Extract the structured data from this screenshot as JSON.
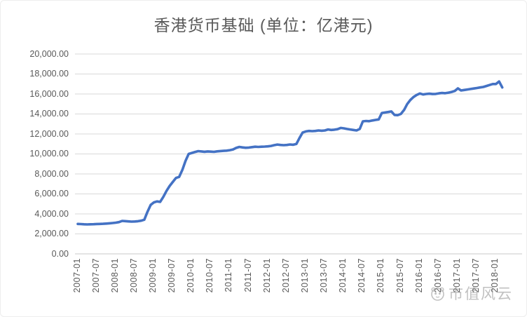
{
  "chart_data": {
    "type": "line",
    "title": "香港货币基础 (单位：亿港元)",
    "xlabel": "",
    "ylabel": "",
    "ylim": [
      0,
      20000
    ],
    "y_tick_step": 2000,
    "y_tick_labels": [
      "0.00",
      "2,000.00",
      "4,000.00",
      "6,000.00",
      "8,000.00",
      "10,000.00",
      "12,000.00",
      "14,000.00",
      "16,000.00",
      "18,000.00",
      "20,000.00"
    ],
    "x_tick_labels": [
      "2007-01",
      "2007-07",
      "2008-01",
      "2008-07",
      "2009-01",
      "2009-07",
      "2010-01",
      "2010-07",
      "2011-01",
      "2011-07",
      "2012-01",
      "2012-07",
      "2013-01",
      "2013-07",
      "2014-01",
      "2014-07",
      "2015-01",
      "2015-07",
      "2016-01",
      "2016-07",
      "2017-01",
      "2017-07",
      "2018-01"
    ],
    "x_tick_month_indices": [
      0,
      6,
      12,
      18,
      24,
      30,
      36,
      42,
      48,
      54,
      60,
      66,
      72,
      78,
      84,
      90,
      96,
      102,
      108,
      114,
      120,
      126,
      132
    ],
    "grid": "horizontal",
    "legend_position": "none",
    "grid_color": "#D9D9D9",
    "axis_line_color": "#C8C8C8",
    "axis_text_color": "#595959",
    "title_color": "#595959",
    "series": [
      {
        "name": "香港货币基础",
        "color": "#4472C4",
        "x_start": "2007-01",
        "x_end": "2018-03",
        "frequency": "monthly",
        "values": [
          3000,
          2980,
          2960,
          2950,
          2960,
          2970,
          2990,
          3000,
          3010,
          3030,
          3060,
          3090,
          3120,
          3180,
          3300,
          3280,
          3250,
          3230,
          3240,
          3270,
          3320,
          3420,
          4200,
          4900,
          5150,
          5250,
          5200,
          5700,
          6300,
          6800,
          7200,
          7600,
          7700,
          8400,
          9300,
          10000,
          10100,
          10200,
          10280,
          10250,
          10220,
          10250,
          10230,
          10210,
          10260,
          10290,
          10310,
          10330,
          10380,
          10450,
          10600,
          10700,
          10650,
          10620,
          10640,
          10680,
          10720,
          10700,
          10720,
          10740,
          10760,
          10800,
          10880,
          10940,
          10900,
          10880,
          10900,
          10950,
          10920,
          11000,
          11600,
          12150,
          12250,
          12300,
          12280,
          12300,
          12350,
          12320,
          12350,
          12450,
          12400,
          12430,
          12480,
          12600,
          12560,
          12500,
          12450,
          12400,
          12350,
          12500,
          13260,
          13300,
          13280,
          13350,
          13400,
          13450,
          14100,
          14150,
          14200,
          14250,
          13900,
          13880,
          14000,
          14400,
          15000,
          15400,
          15700,
          15900,
          16050,
          15950,
          16000,
          16030,
          15990,
          16010,
          16060,
          16100,
          16080,
          16130,
          16200,
          16300,
          16560,
          16350,
          16400,
          16450,
          16500,
          16550,
          16600,
          16650,
          16700,
          16800,
          16900,
          17000,
          17000,
          17250,
          16650
        ]
      }
    ]
  },
  "watermark": {
    "text": "市值风云",
    "icon": "panda-circle-icon",
    "color": "#8f8f8f"
  }
}
